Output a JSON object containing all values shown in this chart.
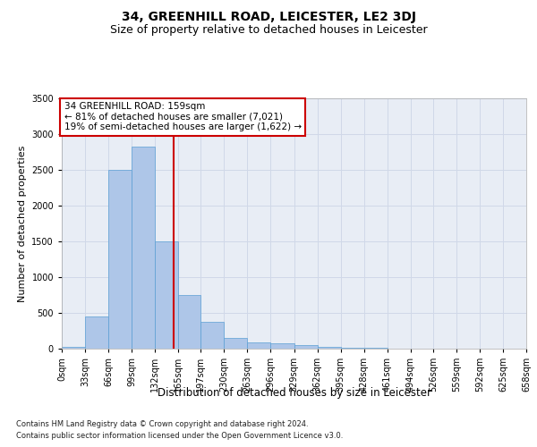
{
  "title": "34, GREENHILL ROAD, LEICESTER, LE2 3DJ",
  "subtitle": "Size of property relative to detached houses in Leicester",
  "xlabel": "Distribution of detached houses by size in Leicester",
  "ylabel": "Number of detached properties",
  "footer_line1": "Contains HM Land Registry data © Crown copyright and database right 2024.",
  "footer_line2": "Contains public sector information licensed under the Open Government Licence v3.0.",
  "annotation_title": "34 GREENHILL ROAD: 159sqm",
  "annotation_line1": "← 81% of detached houses are smaller (7,021)",
  "annotation_line2": "19% of semi-detached houses are larger (1,622) →",
  "bar_left_edges": [
    0,
    33,
    66,
    99,
    132,
    165,
    197,
    230,
    263,
    296,
    329,
    362,
    395,
    428,
    461,
    494,
    526,
    559,
    592,
    625
  ],
  "bar_widths": [
    33,
    33,
    33,
    33,
    33,
    32,
    33,
    33,
    33,
    33,
    33,
    33,
    33,
    33,
    33,
    32,
    33,
    33,
    33,
    33
  ],
  "bar_heights": [
    30,
    450,
    2500,
    2830,
    1500,
    750,
    375,
    145,
    90,
    75,
    50,
    20,
    10,
    8,
    5,
    3,
    2,
    1,
    1,
    0
  ],
  "bar_color": "#aec6e8",
  "bar_edge_color": "#5a9fd4",
  "vline_x": 159,
  "vline_color": "#cc0000",
  "ylim": [
    0,
    3500
  ],
  "yticks": [
    0,
    500,
    1000,
    1500,
    2000,
    2500,
    3000,
    3500
  ],
  "xtick_labels": [
    "0sqm",
    "33sqm",
    "66sqm",
    "99sqm",
    "132sqm",
    "165sqm",
    "197sqm",
    "230sqm",
    "263sqm",
    "296sqm",
    "329sqm",
    "362sqm",
    "395sqm",
    "428sqm",
    "461sqm",
    "494sqm",
    "526sqm",
    "559sqm",
    "592sqm",
    "625sqm",
    "658sqm"
  ],
  "xtick_positions": [
    0,
    33,
    66,
    99,
    132,
    165,
    197,
    230,
    263,
    296,
    329,
    362,
    395,
    428,
    461,
    494,
    526,
    559,
    592,
    625,
    658
  ],
  "grid_color": "#d0d8e8",
  "bg_color": "#e8edf5",
  "title_fontsize": 10,
  "subtitle_fontsize": 9,
  "ylabel_fontsize": 8,
  "xlabel_fontsize": 8.5,
  "tick_fontsize": 7,
  "annotation_fontsize": 7.5,
  "footer_fontsize": 6
}
